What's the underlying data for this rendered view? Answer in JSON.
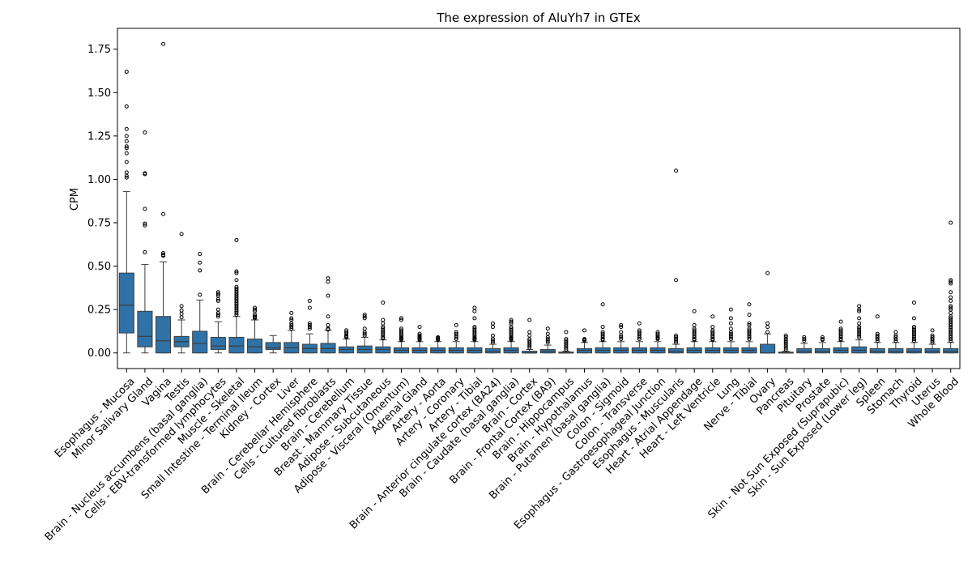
{
  "chart_data": {
    "type": "box",
    "title": "The expression of AluYh7 in GTEx",
    "xlabel": "",
    "ylabel": "CPM",
    "ylim": [
      -0.09,
      1.87
    ],
    "yticks": [
      "0.00",
      "0.25",
      "0.50",
      "0.75",
      "1.00",
      "1.25",
      "1.50",
      "1.75"
    ],
    "grid": false,
    "box_color": "#2f72a7",
    "categories": [
      "Esophagus - Mucosa",
      "Minor Salivary Gland",
      "Vagina",
      "Testis",
      "Brain - Nucleus accumbens (basal ganglia)",
      "Cells - EBV-transformed lymphocytes",
      "Muscle - Skeletal",
      "Small Intestine - Terminal Ileum",
      "Kidney - Cortex",
      "Liver",
      "Brain - Cerebellar Hemisphere",
      "Cells - Cultured fibroblasts",
      "Brain - Cerebellum",
      "Breast - Mammary Tissue",
      "Adipose - Subcutaneous",
      "Adipose - Visceral (Omentum)",
      "Adrenal Gland",
      "Artery - Aorta",
      "Artery - Coronary",
      "Artery - Tibial",
      "Brain - Anterior cingulate cortex (BA24)",
      "Brain - Caudate (basal ganglia)",
      "Brain - Cortex",
      "Brain - Frontal Cortex (BA9)",
      "Brain - Hippocampus",
      "Brain - Hypothalamus",
      "Brain - Putamen (basal ganglia)",
      "Colon - Sigmoid",
      "Colon - Transverse",
      "Esophagus - Gastroesophageal Junction",
      "Esophagus - Muscularis",
      "Heart - Atrial Appendage",
      "Heart - Left Ventricle",
      "Lung",
      "Nerve - Tibial",
      "Ovary",
      "Pancreas",
      "Pituitary",
      "Prostate",
      "Skin - Not Sun Exposed (Suprapubic)",
      "Skin - Sun Exposed (Lower leg)",
      "Spleen",
      "Stomach",
      "Thyroid",
      "Uterus",
      "Whole Blood"
    ],
    "boxes": [
      {
        "min": 0.0,
        "q1": 0.115,
        "median": 0.275,
        "q3": 0.46,
        "max": 0.93,
        "outliers": [
          1.62,
          1.42,
          1.29,
          1.25,
          1.22,
          1.19,
          1.18,
          1.15,
          1.1,
          1.04,
          1.02,
          1.01
        ]
      },
      {
        "min": 0.0,
        "q1": 0.035,
        "median": 0.095,
        "q3": 0.24,
        "max": 0.51,
        "outliers": [
          1.27,
          1.035,
          1.03,
          0.83,
          0.745,
          0.735,
          0.58
        ]
      },
      {
        "min": 0.0,
        "q1": 0.0,
        "median": 0.07,
        "q3": 0.21,
        "max": 0.525,
        "outliers": [
          1.78,
          0.8,
          0.575,
          0.565,
          0.56
        ]
      },
      {
        "min": 0.0,
        "q1": 0.035,
        "median": 0.065,
        "q3": 0.095,
        "max": 0.19,
        "outliers": [
          0.685,
          0.27,
          0.245,
          0.225,
          0.205
        ]
      },
      {
        "min": 0.0,
        "q1": 0.0,
        "median": 0.055,
        "q3": 0.125,
        "max": 0.305,
        "outliers": [
          0.57,
          0.52,
          0.475,
          0.335
        ]
      },
      {
        "min": 0.0,
        "q1": 0.02,
        "median": 0.04,
        "q3": 0.09,
        "max": 0.18,
        "outliers": [
          0.35,
          0.34,
          0.33,
          0.31,
          0.3,
          0.25,
          0.23,
          0.22,
          0.21
        ]
      },
      {
        "min": 0.0,
        "q1": 0.0,
        "median": 0.04,
        "q3": 0.09,
        "max": 0.21,
        "outliers": [
          0.65,
          0.47,
          0.46,
          0.42,
          0.38,
          0.37,
          0.36,
          0.35,
          0.34,
          0.33,
          0.32,
          0.31,
          0.3,
          0.29,
          0.28,
          0.27,
          0.26,
          0.25,
          0.24,
          0.23,
          0.22
        ]
      },
      {
        "min": 0.0,
        "q1": 0.0,
        "median": 0.035,
        "q3": 0.08,
        "max": 0.19,
        "outliers": [
          0.26,
          0.25,
          0.24,
          0.22,
          0.21,
          0.205,
          0.2
        ]
      },
      {
        "min": 0.0,
        "q1": 0.02,
        "median": 0.03,
        "q3": 0.06,
        "max": 0.1,
        "outliers": []
      },
      {
        "min": 0.0,
        "q1": 0.0,
        "median": 0.03,
        "q3": 0.06,
        "max": 0.13,
        "outliers": [
          0.23,
          0.2,
          0.19,
          0.17,
          0.16,
          0.15,
          0.14
        ]
      },
      {
        "min": 0.0,
        "q1": 0.0,
        "median": 0.025,
        "q3": 0.05,
        "max": 0.11,
        "outliers": [
          0.3,
          0.26,
          0.17,
          0.16,
          0.15,
          0.14
        ]
      },
      {
        "min": 0.0,
        "q1": 0.0,
        "median": 0.025,
        "q3": 0.055,
        "max": 0.13,
        "outliers": [
          0.43,
          0.41,
          0.33,
          0.21,
          0.16,
          0.14,
          0.135
        ]
      },
      {
        "min": 0.0,
        "q1": 0.0,
        "median": 0.02,
        "q3": 0.035,
        "max": 0.08,
        "outliers": [
          0.13,
          0.12,
          0.11,
          0.1,
          0.095,
          0.09
        ]
      },
      {
        "min": 0.0,
        "q1": 0.0,
        "median": 0.02,
        "q3": 0.04,
        "max": 0.09,
        "outliers": [
          0.22,
          0.21,
          0.2,
          0.14,
          0.12,
          0.11,
          0.1
        ]
      },
      {
        "min": 0.0,
        "q1": 0.0,
        "median": 0.02,
        "q3": 0.035,
        "max": 0.075,
        "outliers": [
          0.29,
          0.19,
          0.17,
          0.15,
          0.14,
          0.13,
          0.12,
          0.11,
          0.1,
          0.09,
          0.085
        ]
      },
      {
        "min": 0.0,
        "q1": 0.0,
        "median": 0.015,
        "q3": 0.03,
        "max": 0.065,
        "outliers": [
          0.2,
          0.19,
          0.14,
          0.13,
          0.12,
          0.11,
          0.1,
          0.09,
          0.085,
          0.08,
          0.075
        ]
      },
      {
        "min": 0.0,
        "q1": 0.0,
        "median": 0.015,
        "q3": 0.03,
        "max": 0.065,
        "outliers": [
          0.15,
          0.11,
          0.1,
          0.095,
          0.09,
          0.085,
          0.08,
          0.075
        ]
      },
      {
        "min": 0.0,
        "q1": 0.0,
        "median": 0.015,
        "q3": 0.03,
        "max": 0.065,
        "outliers": [
          0.09,
          0.085,
          0.08,
          0.075
        ]
      },
      {
        "min": 0.0,
        "q1": 0.0,
        "median": 0.015,
        "q3": 0.03,
        "max": 0.065,
        "outliers": [
          0.16,
          0.12,
          0.11,
          0.1,
          0.09,
          0.08
        ]
      },
      {
        "min": 0.0,
        "q1": 0.0,
        "median": 0.015,
        "q3": 0.03,
        "max": 0.065,
        "outliers": [
          0.26,
          0.24,
          0.2,
          0.15,
          0.14,
          0.13,
          0.12,
          0.11,
          0.1,
          0.09,
          0.085,
          0.08,
          0.075
        ]
      },
      {
        "min": 0.0,
        "q1": 0.0,
        "median": 0.01,
        "q3": 0.025,
        "max": 0.05,
        "outliers": [
          0.17,
          0.15,
          0.1,
          0.08,
          0.07,
          0.06
        ]
      },
      {
        "min": 0.0,
        "q1": 0.0,
        "median": 0.015,
        "q3": 0.03,
        "max": 0.065,
        "outliers": [
          0.19,
          0.18,
          0.17,
          0.15,
          0.14,
          0.13,
          0.12,
          0.11,
          0.1,
          0.09,
          0.085,
          0.08,
          0.075
        ]
      },
      {
        "min": 0.0,
        "q1": 0.0,
        "median": 0.0,
        "q3": 0.01,
        "max": 0.02,
        "outliers": [
          0.19,
          0.12,
          0.1,
          0.08,
          0.07,
          0.06,
          0.05,
          0.04,
          0.03
        ]
      },
      {
        "min": 0.0,
        "q1": 0.0,
        "median": 0.01,
        "q3": 0.02,
        "max": 0.045,
        "outliers": [
          0.14,
          0.11,
          0.09,
          0.08,
          0.07,
          0.06
        ]
      },
      {
        "min": 0.0,
        "q1": 0.0,
        "median": 0.0,
        "q3": 0.005,
        "max": 0.01,
        "outliers": [
          0.12,
          0.08,
          0.07,
          0.06,
          0.05,
          0.04,
          0.03,
          0.02
        ]
      },
      {
        "min": 0.0,
        "q1": 0.0,
        "median": 0.015,
        "q3": 0.025,
        "max": 0.06,
        "outliers": [
          0.13,
          0.08,
          0.075,
          0.07
        ]
      },
      {
        "min": 0.0,
        "q1": 0.0,
        "median": 0.015,
        "q3": 0.03,
        "max": 0.065,
        "outliers": [
          0.28,
          0.15,
          0.12,
          0.11,
          0.1,
          0.09,
          0.08,
          0.075
        ]
      },
      {
        "min": 0.0,
        "q1": 0.0,
        "median": 0.015,
        "q3": 0.03,
        "max": 0.065,
        "outliers": [
          0.16,
          0.15,
          0.12,
          0.1,
          0.09,
          0.08
        ]
      },
      {
        "min": 0.0,
        "q1": 0.0,
        "median": 0.015,
        "q3": 0.03,
        "max": 0.065,
        "outliers": [
          0.17,
          0.13,
          0.12,
          0.11,
          0.1,
          0.09,
          0.08
        ]
      },
      {
        "min": 0.0,
        "q1": 0.0,
        "median": 0.015,
        "q3": 0.03,
        "max": 0.065,
        "outliers": [
          0.12,
          0.11,
          0.1,
          0.09,
          0.085,
          0.08
        ]
      },
      {
        "min": 0.0,
        "q1": 0.0,
        "median": 0.01,
        "q3": 0.025,
        "max": 0.05,
        "outliers": [
          1.05,
          0.42,
          0.1,
          0.09,
          0.08,
          0.07,
          0.06
        ]
      },
      {
        "min": 0.0,
        "q1": 0.0,
        "median": 0.015,
        "q3": 0.03,
        "max": 0.065,
        "outliers": [
          0.24,
          0.16,
          0.14,
          0.13,
          0.12,
          0.11,
          0.1,
          0.09,
          0.08,
          0.075
        ]
      },
      {
        "min": 0.0,
        "q1": 0.0,
        "median": 0.015,
        "q3": 0.03,
        "max": 0.065,
        "outliers": [
          0.21,
          0.15,
          0.13,
          0.12,
          0.11,
          0.1,
          0.09,
          0.08,
          0.075
        ]
      },
      {
        "min": 0.0,
        "q1": 0.0,
        "median": 0.015,
        "q3": 0.03,
        "max": 0.065,
        "outliers": [
          0.25,
          0.2,
          0.17,
          0.14,
          0.12,
          0.11,
          0.1,
          0.09,
          0.08
        ]
      },
      {
        "min": 0.0,
        "q1": 0.0,
        "median": 0.015,
        "q3": 0.03,
        "max": 0.065,
        "outliers": [
          0.28,
          0.22,
          0.17,
          0.16,
          0.14,
          0.13,
          0.12,
          0.11,
          0.1,
          0.09,
          0.08
        ]
      },
      {
        "min": 0.0,
        "q1": 0.0,
        "median": 0.0,
        "q3": 0.05,
        "max": 0.11,
        "outliers": [
          0.46,
          0.17,
          0.15,
          0.12
        ]
      },
      {
        "min": 0.0,
        "q1": 0.0,
        "median": 0.0,
        "q3": 0.005,
        "max": 0.01,
        "outliers": [
          0.1,
          0.09,
          0.08,
          0.07,
          0.06,
          0.05,
          0.04,
          0.03,
          0.02
        ]
      },
      {
        "min": 0.0,
        "q1": 0.0,
        "median": 0.01,
        "q3": 0.025,
        "max": 0.055,
        "outliers": [
          0.09,
          0.08,
          0.07
        ]
      },
      {
        "min": 0.0,
        "q1": 0.0,
        "median": 0.01,
        "q3": 0.025,
        "max": 0.06,
        "outliers": [
          0.09,
          0.08,
          0.075
        ]
      },
      {
        "min": 0.0,
        "q1": 0.0,
        "median": 0.015,
        "q3": 0.03,
        "max": 0.065,
        "outliers": [
          0.18,
          0.14,
          0.13,
          0.12,
          0.11,
          0.1,
          0.09,
          0.08,
          0.075
        ]
      },
      {
        "min": 0.0,
        "q1": 0.0,
        "median": 0.015,
        "q3": 0.035,
        "max": 0.075,
        "outliers": [
          0.27,
          0.25,
          0.24,
          0.2,
          0.17,
          0.15,
          0.14,
          0.13,
          0.12,
          0.11,
          0.1,
          0.09
        ]
      },
      {
        "min": 0.0,
        "q1": 0.0,
        "median": 0.01,
        "q3": 0.025,
        "max": 0.06,
        "outliers": [
          0.21,
          0.11,
          0.1,
          0.09,
          0.08,
          0.07
        ]
      },
      {
        "min": 0.0,
        "q1": 0.0,
        "median": 0.01,
        "q3": 0.025,
        "max": 0.06,
        "outliers": [
          0.12,
          0.1,
          0.09,
          0.08,
          0.07
        ]
      },
      {
        "min": 0.0,
        "q1": 0.0,
        "median": 0.01,
        "q3": 0.025,
        "max": 0.06,
        "outliers": [
          0.29,
          0.2,
          0.15,
          0.14,
          0.13,
          0.12,
          0.11,
          0.1,
          0.09,
          0.08,
          0.07
        ]
      },
      {
        "min": 0.0,
        "q1": 0.0,
        "median": 0.01,
        "q3": 0.025,
        "max": 0.05,
        "outliers": [
          0.13,
          0.1,
          0.09,
          0.08,
          0.07,
          0.06
        ]
      },
      {
        "min": 0.0,
        "q1": 0.0,
        "median": 0.01,
        "q3": 0.025,
        "max": 0.06,
        "outliers": [
          0.75,
          0.42,
          0.41,
          0.4,
          0.35,
          0.32,
          0.3,
          0.27,
          0.26,
          0.25,
          0.23,
          0.21,
          0.2,
          0.19,
          0.18,
          0.17,
          0.16,
          0.15,
          0.14,
          0.13,
          0.12,
          0.11,
          0.1,
          0.09,
          0.08,
          0.07
        ]
      }
    ]
  }
}
